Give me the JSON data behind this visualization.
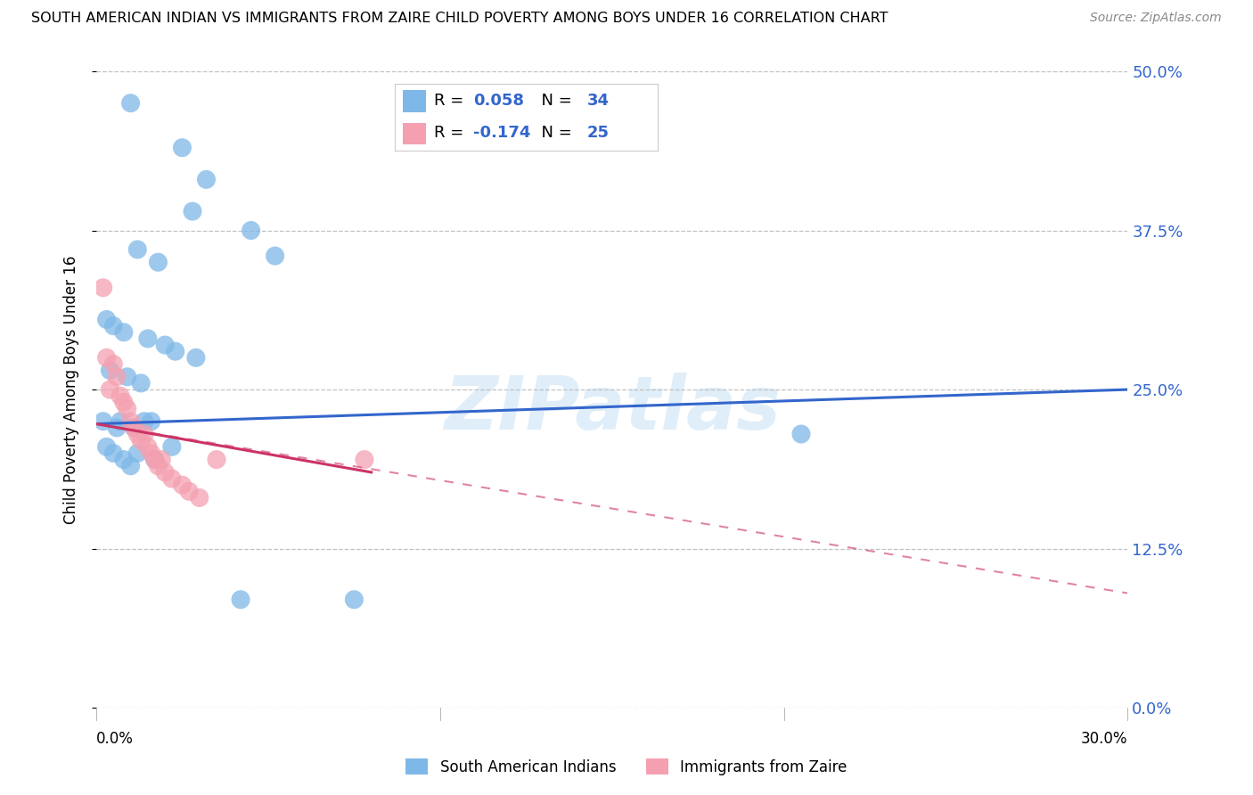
{
  "title": "SOUTH AMERICAN INDIAN VS IMMIGRANTS FROM ZAIRE CHILD POVERTY AMONG BOYS UNDER 16 CORRELATION CHART",
  "source": "Source: ZipAtlas.com",
  "ylabel": "Child Poverty Among Boys Under 16",
  "ytick_vals": [
    0.0,
    12.5,
    25.0,
    37.5,
    50.0
  ],
  "xlim": [
    0.0,
    30.0
  ],
  "ylim": [
    0.0,
    50.0
  ],
  "watermark": "ZIPatlas",
  "legend_blue_r": "0.058",
  "legend_blue_n": "34",
  "legend_pink_r": "-0.174",
  "legend_pink_n": "25",
  "legend_label_blue": "South American Indians",
  "legend_label_pink": "Immigrants from Zaire",
  "blue_color": "#7eb8e8",
  "pink_color": "#f4a0b0",
  "blue_line_color": "#3366cc",
  "pink_line_color": "#cc3366",
  "background_color": "#ffffff",
  "grid_color": "#bbbbbb",
  "blue_scatter_x": [
    1.0,
    2.5,
    3.2,
    2.8,
    4.5,
    5.2,
    1.2,
    1.8,
    0.3,
    0.5,
    0.8,
    1.5,
    2.0,
    2.3,
    2.9,
    0.4,
    0.9,
    1.3,
    0.2,
    0.6,
    0.7,
    1.1,
    1.4,
    1.6,
    0.3,
    0.5,
    0.8,
    1.0,
    1.2,
    1.7,
    2.2,
    4.2,
    7.5,
    20.5
  ],
  "blue_scatter_y": [
    47.5,
    44.0,
    41.5,
    39.0,
    37.5,
    35.5,
    36.0,
    35.0,
    30.5,
    30.0,
    29.5,
    29.0,
    28.5,
    28.0,
    27.5,
    26.5,
    26.0,
    25.5,
    22.5,
    22.0,
    22.5,
    22.0,
    22.5,
    22.5,
    20.5,
    20.0,
    19.5,
    19.0,
    20.0,
    19.5,
    20.5,
    8.5,
    8.5,
    21.5
  ],
  "pink_scatter_x": [
    0.2,
    0.3,
    0.4,
    0.5,
    0.6,
    0.7,
    0.8,
    0.9,
    1.0,
    1.1,
    1.2,
    1.3,
    1.4,
    1.5,
    1.6,
    1.7,
    1.8,
    1.9,
    2.0,
    2.2,
    2.5,
    2.7,
    3.0,
    3.5,
    7.8
  ],
  "pink_scatter_y": [
    33.0,
    27.5,
    25.0,
    27.0,
    26.0,
    24.5,
    24.0,
    23.5,
    22.5,
    22.0,
    21.5,
    21.0,
    21.5,
    20.5,
    20.0,
    19.5,
    19.0,
    19.5,
    18.5,
    18.0,
    17.5,
    17.0,
    16.5,
    19.5,
    19.5
  ],
  "blue_line_x0": 0.0,
  "blue_line_y0": 22.3,
  "blue_line_x1": 30.0,
  "blue_line_y1": 25.0,
  "pink_solid_x0": 0.0,
  "pink_solid_y0": 22.3,
  "pink_solid_x1": 8.0,
  "pink_solid_y1": 18.5,
  "pink_dash_x0": 0.0,
  "pink_dash_y0": 22.3,
  "pink_dash_x1": 30.0,
  "pink_dash_y1": 9.0
}
